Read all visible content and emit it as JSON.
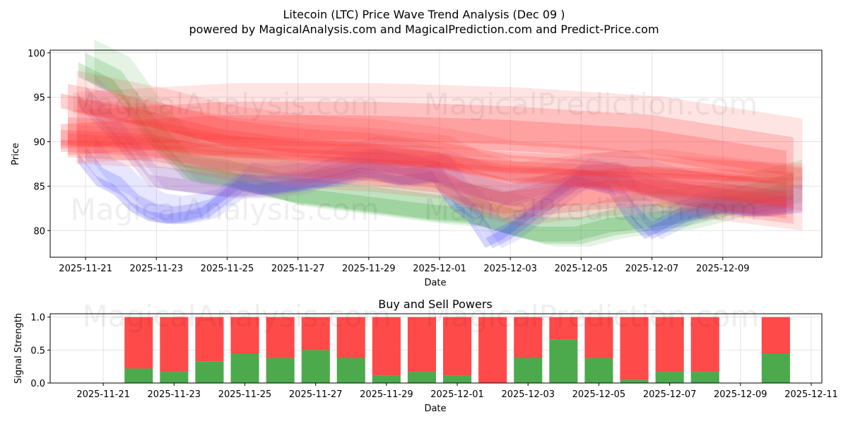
{
  "title_line1": "Litecoin (LTC) Price Wave Trend Analysis (Dec 09 )",
  "title_line2": "powered by MagicalAnalysis.com and MagicalPrediction.com and Predict-Price.com",
  "watermark_1": "MagicalAnalysis.com",
  "watermark_2": "MagicalPrediction.com",
  "chart_data": [
    {
      "type": "area",
      "title": "",
      "xlabel": "Date",
      "ylabel": "Price",
      "ylim": [
        77,
        100.3
      ],
      "yticks": [
        80,
        85,
        90,
        95,
        100
      ],
      "xlim_days": [
        -1.0,
        20.8
      ],
      "xticks": [
        "2025-11-21",
        "2025-11-23",
        "2025-11-25",
        "2025-11-27",
        "2025-11-29",
        "2025-12-01",
        "2025-12-03",
        "2025-12-05",
        "2025-12-07",
        "2025-12-09"
      ],
      "grid": true,
      "colors": {
        "green": "#2ca02c",
        "blue": "#4040ff",
        "purple": "#9060c0",
        "red": "#ff3030"
      },
      "series": [
        {
          "name": "green wave",
          "color": "green",
          "x": [
            0,
            1,
            2,
            3,
            4,
            5,
            6,
            7,
            8,
            9,
            10,
            11,
            12,
            13,
            14,
            15,
            16,
            17,
            18,
            19,
            20
          ],
          "y": [
            98.5,
            96.5,
            91,
            87,
            86.5,
            85.5,
            84.5,
            84,
            83.5,
            83,
            82.5,
            82.2,
            81,
            80,
            80,
            81,
            81.5,
            82,
            83,
            84,
            85
          ],
          "width": 3.0
        },
        {
          "name": "blue wave",
          "color": "blue",
          "x": [
            0,
            0.5,
            1,
            1.5,
            2,
            2.5,
            3,
            3.5,
            4,
            4.5,
            5,
            6,
            7,
            8,
            9,
            10,
            10.5,
            11,
            11.5,
            12,
            13,
            14,
            15,
            15.5,
            16,
            17,
            18,
            19,
            20
          ],
          "y": [
            88.5,
            86,
            85,
            83,
            82,
            81.7,
            82,
            82.5,
            84,
            85.5,
            85,
            85.5,
            86,
            87,
            86,
            86.5,
            83.5,
            82,
            79,
            80,
            83,
            86,
            85,
            82,
            80,
            82,
            83,
            82.5,
            83
          ],
          "width": 2.0
        },
        {
          "name": "purple wave",
          "color": "purple",
          "x": [
            0,
            1,
            2,
            3,
            4,
            5,
            6,
            7,
            8,
            9,
            10,
            11,
            12,
            13,
            14,
            15,
            16,
            17,
            18,
            19,
            20
          ],
          "y": [
            95,
            91,
            86,
            85.5,
            85,
            85,
            85.5,
            87,
            88,
            87.5,
            86.5,
            85,
            84,
            85,
            86,
            86.5,
            85,
            84,
            83.5,
            83,
            83.5
          ],
          "width": 2.5
        },
        {
          "name": "red band long",
          "color": "red",
          "x": [
            -0.5,
            4,
            8,
            12,
            16,
            20
          ],
          "y": [
            91,
            92,
            92,
            91.5,
            90.5,
            88
          ],
          "width": 5.0
        },
        {
          "name": "red band mid",
          "color": "red",
          "x": [
            -0.5,
            2,
            4,
            6,
            8,
            10,
            11,
            12,
            14,
            16,
            18,
            20
          ],
          "y": [
            90.5,
            90,
            88.5,
            87.8,
            87.3,
            86.5,
            84.5,
            83.5,
            84.5,
            85,
            84,
            83
          ],
          "width": 4.5
        },
        {
          "name": "red band falling",
          "color": "red",
          "x": [
            -0.5,
            2,
            4,
            6,
            8,
            10,
            12,
            14,
            16,
            18,
            20
          ],
          "y": [
            95,
            93,
            91,
            90,
            89.5,
            88.5,
            87,
            86.5,
            85.5,
            85,
            84
          ],
          "width": 3.0
        },
        {
          "name": "red trend line",
          "color": "red",
          "x": [
            -0.5,
            2,
            4,
            6,
            8,
            10,
            12,
            14,
            16,
            18,
            20
          ],
          "y": [
            90.3,
            89.8,
            89,
            88.6,
            88.2,
            87.8,
            87.2,
            86.9,
            86.6,
            86.3,
            86
          ],
          "width": 1.2
        }
      ]
    },
    {
      "type": "bar",
      "title": "Buy and Sell Powers",
      "xlabel": "Date",
      "ylabel": "Signal Strength",
      "ylim": [
        0,
        1.05
      ],
      "yticks": [
        "0.0",
        "0.5",
        "1.0"
      ],
      "xlim_days": [
        -1.5,
        20.3
      ],
      "xticks": [
        "2025-11-21",
        "2025-11-23",
        "2025-11-25",
        "2025-11-27",
        "2025-11-29",
        "2025-12-01",
        "2025-12-03",
        "2025-12-05",
        "2025-12-07",
        "2025-12-09",
        "2025-12-11"
      ],
      "grid": true,
      "colors": {
        "buy": "#4caa4c",
        "sell": "#ff4a4a"
      },
      "bars": [
        {
          "date": "2025-11-22",
          "buy": 0.22,
          "sell": 0.78
        },
        {
          "date": "2025-11-23",
          "buy": 0.17,
          "sell": 0.83
        },
        {
          "date": "2025-11-24",
          "buy": 0.33,
          "sell": 0.67
        },
        {
          "date": "2025-11-25",
          "buy": 0.45,
          "sell": 0.55
        },
        {
          "date": "2025-11-26",
          "buy": 0.38,
          "sell": 0.62
        },
        {
          "date": "2025-11-27",
          "buy": 0.5,
          "sell": 0.5
        },
        {
          "date": "2025-11-28",
          "buy": 0.38,
          "sell": 0.62
        },
        {
          "date": "2025-11-29",
          "buy": 0.11,
          "sell": 0.89
        },
        {
          "date": "2025-11-30",
          "buy": 0.17,
          "sell": 0.83
        },
        {
          "date": "2025-12-01",
          "buy": 0.11,
          "sell": 0.89
        },
        {
          "date": "2025-12-02",
          "buy": 0.0,
          "sell": 1.0
        },
        {
          "date": "2025-12-03",
          "buy": 0.38,
          "sell": 0.62
        },
        {
          "date": "2025-12-04",
          "buy": 0.66,
          "sell": 0.34
        },
        {
          "date": "2025-12-05",
          "buy": 0.38,
          "sell": 0.62
        },
        {
          "date": "2025-12-06",
          "buy": 0.05,
          "sell": 0.95
        },
        {
          "date": "2025-12-07",
          "buy": 0.17,
          "sell": 0.83
        },
        {
          "date": "2025-12-08",
          "buy": 0.17,
          "sell": 0.83
        },
        {
          "date": "2025-12-10",
          "buy": 0.45,
          "sell": 0.55
        }
      ]
    }
  ]
}
